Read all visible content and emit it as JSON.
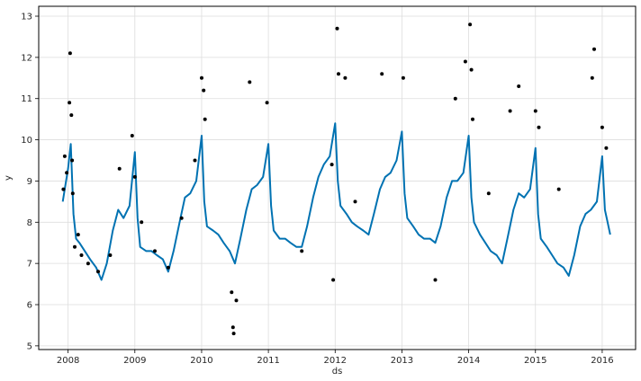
{
  "chart_data": {
    "type": "scatter",
    "title": "",
    "xlabel": "ds",
    "ylabel": "y",
    "xlim": [
      2007.56,
      2016.5
    ],
    "ylim": [
      4.91,
      13.24
    ],
    "x_ticks": [
      "2008",
      "2009",
      "2010",
      "2011",
      "2012",
      "2013",
      "2014",
      "2015",
      "2016"
    ],
    "y_ticks": [
      "5",
      "6",
      "7",
      "8",
      "9",
      "10",
      "11",
      "12",
      "13"
    ],
    "grid": true,
    "colors": {
      "points": "#000000",
      "forecast": "#0072B2",
      "grid": "#dddddd",
      "axes": "#000000"
    },
    "series": [
      {
        "type": "line",
        "x": [
          2007.92,
          2008.0,
          2008.04,
          2008.08,
          2008.12,
          2008.17,
          2008.25,
          2008.33,
          2008.42,
          2008.5,
          2008.58,
          2008.67,
          2008.75,
          2008.83,
          2008.92,
          2009.0,
          2009.04,
          2009.08,
          2009.17,
          2009.25,
          2009.33,
          2009.42,
          2009.5,
          2009.58,
          2009.67,
          2009.75,
          2009.83,
          2009.92,
          2010.0,
          2010.04,
          2010.08,
          2010.17,
          2010.25,
          2010.33,
          2010.42,
          2010.5,
          2010.58,
          2010.67,
          2010.75,
          2010.83,
          2010.92,
          2011.0,
          2011.04,
          2011.08,
          2011.17,
          2011.25,
          2011.33,
          2011.42,
          2011.5,
          2011.58,
          2011.67,
          2011.75,
          2011.83,
          2011.92,
          2012.0,
          2012.04,
          2012.08,
          2012.17,
          2012.25,
          2012.33,
          2012.42,
          2012.5,
          2012.58,
          2012.67,
          2012.75,
          2012.83,
          2012.92,
          2013.0,
          2013.04,
          2013.08,
          2013.17,
          2013.25,
          2013.33,
          2013.42,
          2013.5,
          2013.58,
          2013.67,
          2013.75,
          2013.83,
          2013.92,
          2014.0,
          2014.04,
          2014.08,
          2014.17,
          2014.25,
          2014.33,
          2014.42,
          2014.5,
          2014.58,
          2014.67,
          2014.75,
          2014.83,
          2014.92,
          2015.0,
          2015.04,
          2015.08,
          2015.17,
          2015.25,
          2015.33,
          2015.42,
          2015.5,
          2015.58,
          2015.67,
          2015.75,
          2015.83,
          2015.92,
          2016.0,
          2016.04,
          2016.08,
          2016.12
        ],
        "y": [
          8.5,
          9.3,
          9.9,
          8.2,
          7.6,
          7.5,
          7.3,
          7.1,
          6.9,
          6.6,
          7.0,
          7.8,
          8.3,
          8.1,
          8.4,
          9.7,
          8.1,
          7.4,
          7.3,
          7.3,
          7.2,
          7.1,
          6.8,
          7.3,
          8.0,
          8.6,
          8.7,
          9.0,
          10.1,
          8.5,
          7.9,
          7.8,
          7.7,
          7.5,
          7.3,
          7.0,
          7.6,
          8.3,
          8.8,
          8.9,
          9.1,
          9.9,
          8.4,
          7.8,
          7.6,
          7.6,
          7.5,
          7.4,
          7.4,
          7.9,
          8.6,
          9.1,
          9.4,
          9.6,
          10.4,
          9.0,
          8.4,
          8.2,
          8.0,
          7.9,
          7.8,
          7.7,
          8.2,
          8.8,
          9.1,
          9.2,
          9.5,
          10.2,
          8.7,
          8.1,
          7.9,
          7.7,
          7.6,
          7.6,
          7.5,
          7.9,
          8.6,
          9.0,
          9.0,
          9.2,
          10.1,
          8.6,
          8.0,
          7.7,
          7.5,
          7.3,
          7.2,
          7.0,
          7.6,
          8.3,
          8.7,
          8.6,
          8.8,
          9.8,
          8.2,
          7.6,
          7.4,
          7.2,
          7.0,
          6.9,
          6.7,
          7.2,
          7.9,
          8.2,
          8.3,
          8.5,
          9.6,
          8.3,
          8.0,
          7.7
        ]
      },
      {
        "type": "scatter",
        "x": [
          2007.93,
          2007.95,
          2007.98,
          2008.02,
          2008.03,
          2008.05,
          2008.06,
          2008.07,
          2008.1,
          2008.15,
          2008.2,
          2008.3,
          2008.45,
          2008.63,
          2008.77,
          2008.96,
          2009.0,
          2009.1,
          2009.3,
          2009.5,
          2009.7,
          2009.9,
          2010.0,
          2010.03,
          2010.05,
          2010.45,
          2010.47,
          2010.48,
          2010.52,
          2010.72,
          2010.98,
          2011.5,
          2011.95,
          2011.97,
          2012.03,
          2012.05,
          2012.15,
          2012.3,
          2012.7,
          2013.02,
          2013.5,
          2013.8,
          2013.95,
          2014.02,
          2014.04,
          2014.06,
          2014.3,
          2014.62,
          2014.75,
          2015.0,
          2015.05,
          2015.35,
          2015.85,
          2015.88,
          2016.0,
          2016.06
        ],
        "y": [
          8.8,
          9.6,
          9.2,
          10.9,
          12.1,
          10.6,
          9.5,
          8.7,
          7.4,
          7.7,
          7.2,
          7.0,
          6.8,
          7.2,
          9.3,
          10.1,
          9.1,
          8.0,
          7.3,
          6.9,
          8.1,
          9.5,
          11.5,
          11.2,
          10.5,
          6.3,
          5.45,
          5.3,
          6.1,
          11.4,
          10.9,
          7.3,
          9.4,
          6.6,
          12.7,
          11.6,
          11.5,
          8.5,
          11.6,
          11.5,
          6.6,
          11.0,
          11.9,
          12.8,
          11.7,
          10.5,
          8.7,
          10.7,
          11.3,
          10.7,
          10.3,
          8.8,
          11.5,
          12.2,
          10.3,
          9.8
        ]
      }
    ]
  }
}
